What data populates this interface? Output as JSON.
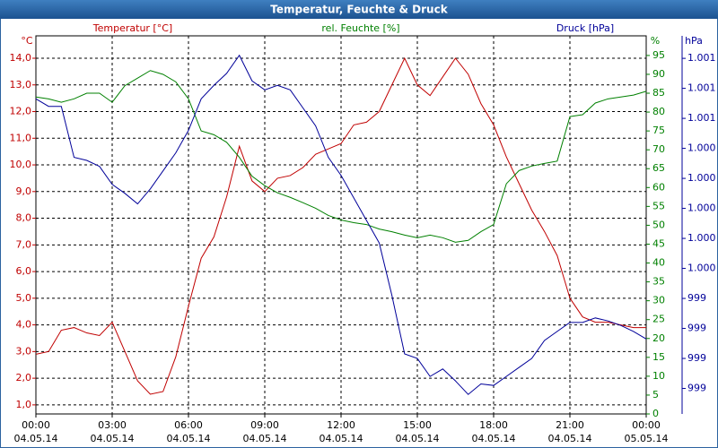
{
  "chart_data": {
    "type": "line",
    "title": "Temperatur, Feuchte & Druck",
    "ylabel": "°C",
    "y2label": "%",
    "y3label": "hPa",
    "grid": true,
    "xlim": [
      0,
      24
    ],
    "xticks": [
      {
        "value": 0,
        "label": "00:00"
      },
      {
        "value": 3,
        "label": "03:00"
      },
      {
        "value": 6,
        "label": "06:00"
      },
      {
        "value": 9,
        "label": "09:00"
      },
      {
        "value": 12,
        "label": "12:00"
      },
      {
        "value": 15,
        "label": "15:00"
      },
      {
        "value": 18,
        "label": "18:00"
      },
      {
        "value": 21,
        "label": "21:00"
      },
      {
        "value": 24,
        "label": "00:00"
      }
    ],
    "xtick_dates": [
      "04.05.14",
      "04.05.14",
      "04.05.14",
      "04.05.14",
      "04.05.14",
      "04.05.14",
      "04.05.14",
      "04.05.14",
      "05.05.14"
    ],
    "ylim": [
      0.66,
      14.84
    ],
    "yticks": [
      {
        "value": 1,
        "label": "1,0"
      },
      {
        "value": 2,
        "label": "2,0"
      },
      {
        "value": 3,
        "label": "3,0"
      },
      {
        "value": 4,
        "label": "4,0"
      },
      {
        "value": 5,
        "label": "5,0"
      },
      {
        "value": 6,
        "label": "6,0"
      },
      {
        "value": 7,
        "label": "7,0"
      },
      {
        "value": 8,
        "label": "8,0"
      },
      {
        "value": 9,
        "label": "9,0"
      },
      {
        "value": 10,
        "label": "10,0"
      },
      {
        "value": 11,
        "label": "11,0"
      },
      {
        "value": 12,
        "label": "12,0"
      },
      {
        "value": 13,
        "label": "13,0"
      },
      {
        "value": 14,
        "label": "14,0"
      }
    ],
    "y2lim": [
      0,
      100.2
    ],
    "y2ticks": [
      0,
      5,
      10,
      15,
      20,
      25,
      30,
      35,
      40,
      45,
      50,
      55,
      60,
      65,
      70,
      75,
      80,
      85,
      90,
      95
    ],
    "y3lim": [
      998.53,
      1001.05
    ],
    "y3ticks": [
      {
        "value": 998.7,
        "label": "999"
      },
      {
        "value": 998.9,
        "label": "999"
      },
      {
        "value": 999.1,
        "label": "999"
      },
      {
        "value": 999.3,
        "label": "999"
      },
      {
        "value": 999.5,
        "label": "1.000"
      },
      {
        "value": 999.7,
        "label": "1.000"
      },
      {
        "value": 999.9,
        "label": "1.000"
      },
      {
        "value": 1000.1,
        "label": "1.000"
      },
      {
        "value": 1000.3,
        "label": "1.000"
      },
      {
        "value": 1000.5,
        "label": "1.001"
      },
      {
        "value": 1000.7,
        "label": "1.001"
      },
      {
        "value": 1000.9,
        "label": "1.001"
      }
    ],
    "x": [
      0,
      0.5,
      1,
      1.5,
      2,
      2.5,
      3,
      3.5,
      4,
      4.5,
      5,
      5.5,
      6,
      6.5,
      7,
      7.5,
      8,
      8.5,
      9,
      9.5,
      10,
      10.5,
      11,
      11.5,
      12,
      12.5,
      13,
      13.5,
      14,
      14.5,
      15,
      15.5,
      16,
      16.5,
      17,
      17.5,
      18,
      18.5,
      19,
      19.5,
      20,
      20.5,
      21,
      21.5,
      22,
      22.5,
      23,
      23.5,
      24
    ],
    "series": [
      {
        "name": "Temperatur [°C]",
        "color": "#c00000",
        "axis": "y",
        "values": [
          2.9,
          3.0,
          3.8,
          3.9,
          3.7,
          3.6,
          4.1,
          3.0,
          1.9,
          1.4,
          1.5,
          2.8,
          4.7,
          6.5,
          7.3,
          8.8,
          10.7,
          9.4,
          9.0,
          9.5,
          9.6,
          9.9,
          10.4,
          10.6,
          10.8,
          11.5,
          11.6,
          12.0,
          13.0,
          14.0,
          13.0,
          12.6,
          13.3,
          14.0,
          13.4,
          12.3,
          11.5,
          10.3,
          9.3,
          8.3,
          7.5,
          6.6,
          5.0,
          4.3,
          4.1,
          4.1,
          4.0,
          3.9,
          3.9
        ]
      },
      {
        "name": "rel. Feuchte [%]",
        "color": "#008000",
        "axis": "y2",
        "values": [
          84,
          83.5,
          82.6,
          83.5,
          85,
          85,
          82.6,
          87,
          89,
          91,
          90,
          88,
          83.5,
          75,
          74,
          72,
          68,
          63,
          60.5,
          58.6,
          57.4,
          56,
          54.5,
          52.6,
          51.4,
          50.7,
          50.2,
          49,
          48.3,
          47.4,
          46.7,
          47.4,
          46.7,
          45.5,
          46,
          48.3,
          50.2,
          61,
          64.5,
          65.7,
          66.4,
          67,
          78.8,
          79.3,
          82.4,
          83.5,
          84,
          84.5,
          85.5
        ]
      },
      {
        "name": "Druck [hPa]",
        "color": "#000099",
        "axis": "y3",
        "values": [
          1000.63,
          1000.58,
          1000.58,
          1000.24,
          1000.22,
          1000.18,
          1000.06,
          1000.0,
          999.93,
          1000.03,
          1000.15,
          1000.27,
          1000.42,
          1000.63,
          1000.72,
          1000.8,
          1000.92,
          1000.75,
          1000.69,
          1000.72,
          1000.69,
          1000.57,
          1000.45,
          1000.24,
          1000.12,
          999.97,
          999.82,
          999.67,
          999.32,
          998.93,
          998.9,
          998.78,
          998.83,
          998.75,
          998.66,
          998.73,
          998.72,
          998.78,
          998.84,
          998.9,
          999.02,
          999.08,
          999.14,
          999.14,
          999.17,
          999.15,
          999.12,
          999.08,
          999.03
        ]
      }
    ]
  }
}
